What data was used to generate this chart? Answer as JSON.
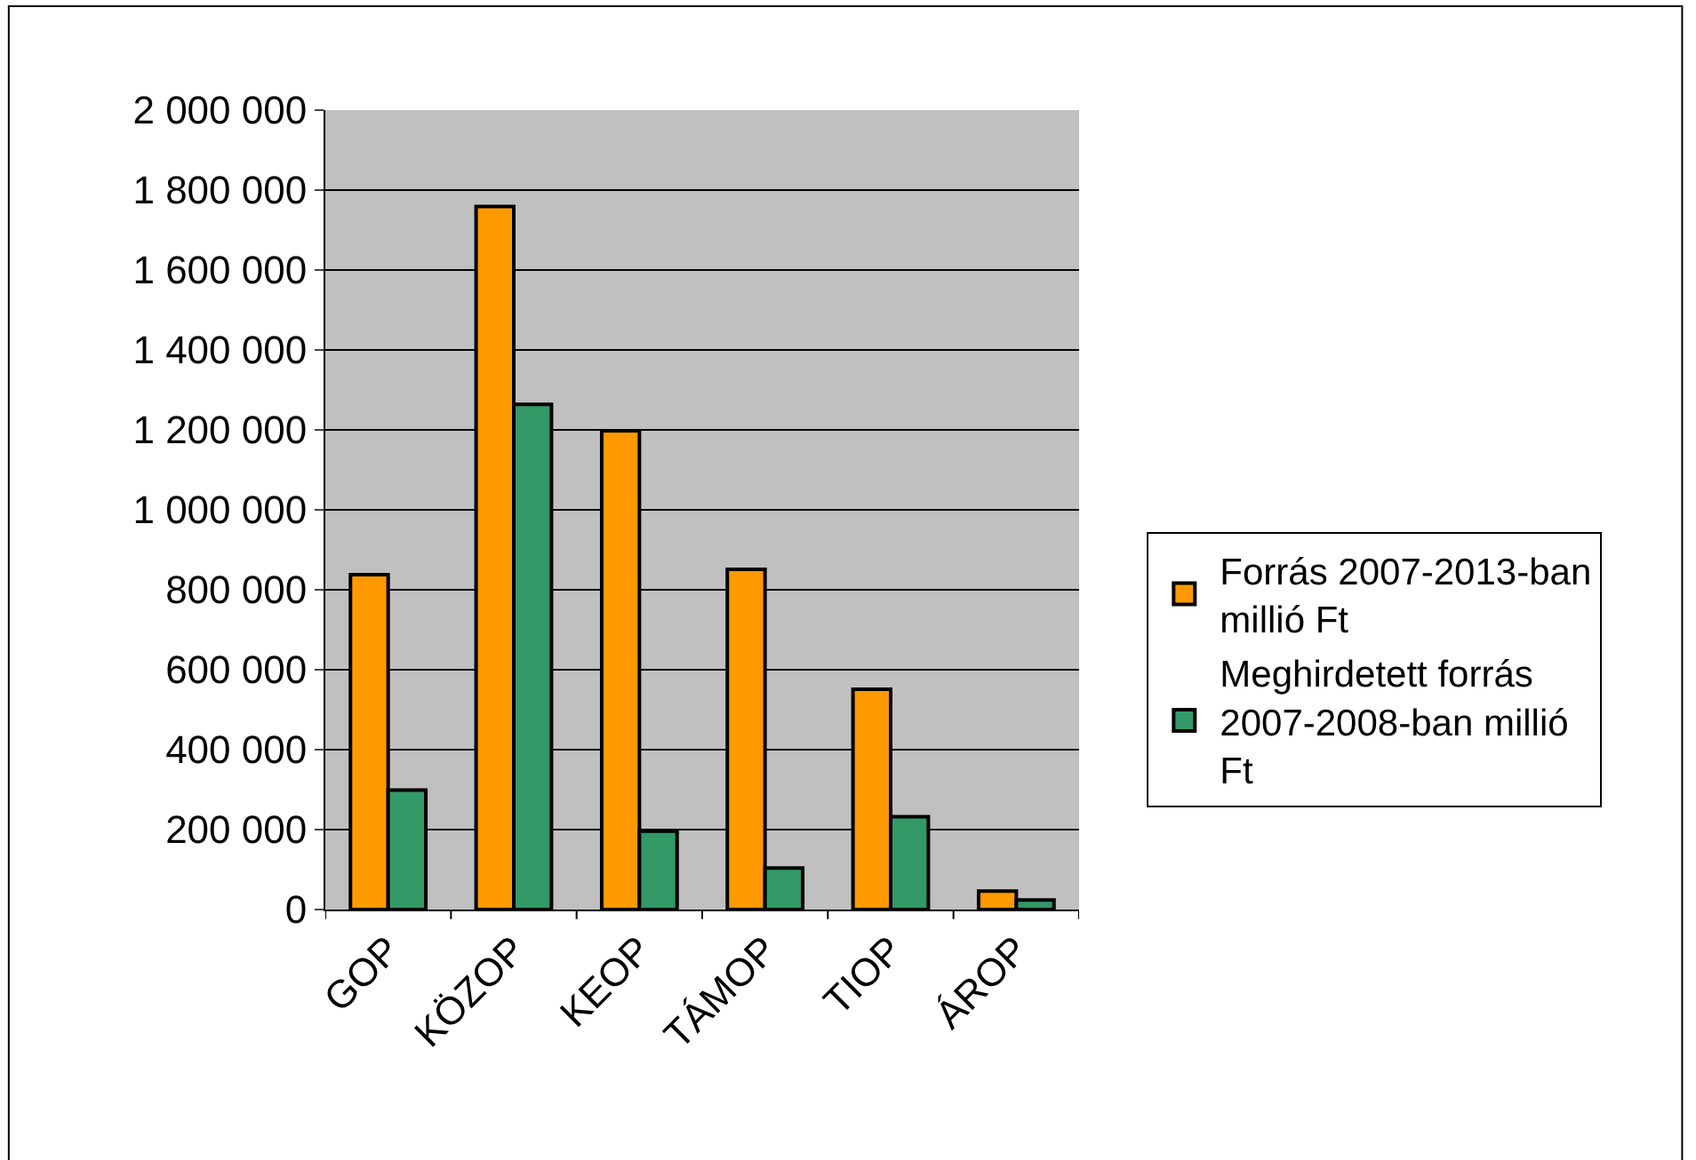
{
  "chart_data": {
    "type": "bar",
    "categories": [
      "GOP",
      "KÖZOP",
      "KEOP",
      "TÁMOP",
      "TIOP",
      "ÁROP"
    ],
    "series": [
      {
        "name": "Forrás 2007-2013-ban millió Ft",
        "color": "#ff9900",
        "values": [
          838000,
          1759000,
          1198000,
          851000,
          551000,
          46000
        ]
      },
      {
        "name": "Meghirdetett forrás 2007-2008-ban millió Ft",
        "color": "#339966",
        "values": [
          299000,
          1264000,
          196000,
          104000,
          232000,
          24000
        ]
      }
    ],
    "ylim": [
      0,
      2000000
    ],
    "yticks": [
      {
        "value": 0,
        "label": "0"
      },
      {
        "value": 200000,
        "label": "200 000"
      },
      {
        "value": 400000,
        "label": "400 000"
      },
      {
        "value": 600000,
        "label": "600 000"
      },
      {
        "value": 800000,
        "label": "800 000"
      },
      {
        "value": 1000000,
        "label": "1 000 000"
      },
      {
        "value": 1200000,
        "label": "1 200 000"
      },
      {
        "value": 1400000,
        "label": "1 400 000"
      },
      {
        "value": 1600000,
        "label": "1 600 000"
      },
      {
        "value": 1800000,
        "label": "1 800 000"
      },
      {
        "value": 2000000,
        "label": "2 000 000"
      }
    ],
    "grid": "y",
    "legend": "right"
  }
}
